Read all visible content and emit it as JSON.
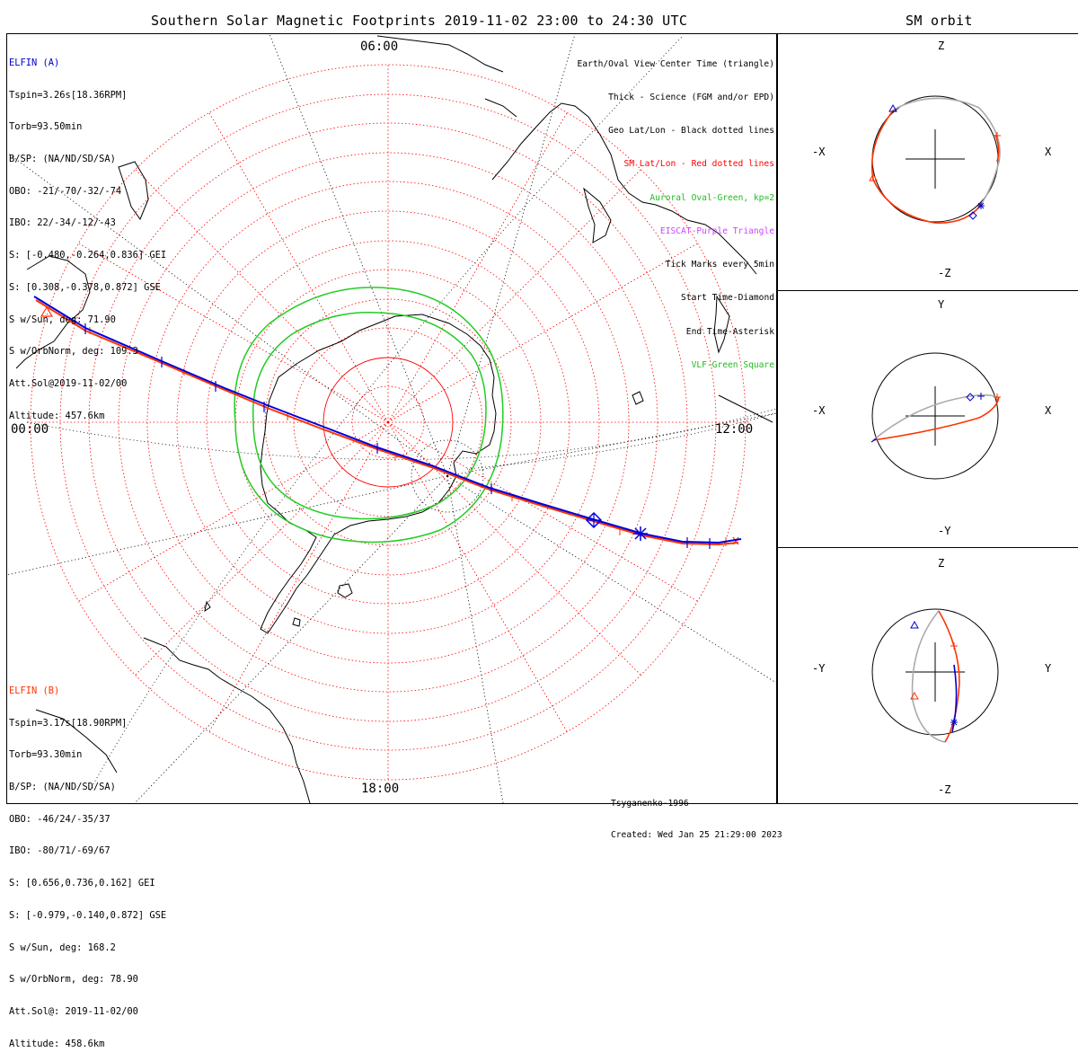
{
  "header": {
    "title": "Southern Solar Magnetic Footprints 2019-11-02 23:00 to 24:30 UTC",
    "orbit_panel_title": "SM orbit"
  },
  "map": {
    "mlt_labels": {
      "top": "06:00",
      "left": "00:00",
      "right": "12:00",
      "bottom": "18:00"
    }
  },
  "elfin_a": {
    "name": "ELFIN (A)",
    "color": "#0000cc",
    "lines": [
      "Tspin=3.26s[18.36RPM]",
      "Torb=93.50min",
      "B/SP: (NA/ND/SD/SA)",
      "OBO: -21/-70/-32/-74",
      "IBO: 22/-34/-12/-43",
      "S: [-0.480,-0.264,0.836] GEI",
      "S: [0.308,-0.378,0.872] GSE",
      "S w/Sun, deg: 71.90",
      "S w/OrbNorm, deg: 109.3",
      "Att.Sol@2019-11-02/00",
      "Altitude: 457.6km"
    ]
  },
  "elfin_b": {
    "name": "ELFIN (B)",
    "color": "#ff3300",
    "lines": [
      "Tspin=3.17s[18.90RPM]",
      "Torb=93.30min",
      "B/SP: (NA/ND/SD/SA)",
      "OBO: -46/24/-35/37",
      "IBO: -80/71/-69/67",
      "S: [0.656,0.736,0.162] GEI",
      "S: [-0.979,-0.140,0.872] GSE",
      "S w/Sun, deg: 168.2",
      "S w/OrbNorm, deg: 78.90",
      "Att.Sol@: 2019-11-02/00",
      "Altitude: 458.6km"
    ]
  },
  "legend": [
    {
      "text": "Earth/Oval View Center Time (triangle)",
      "color": "#000000"
    },
    {
      "text": "Thick - Science (FGM and/or EPD)",
      "color": "#000000"
    },
    {
      "text": "Geo Lat/Lon - Black dotted lines",
      "color": "#000000"
    },
    {
      "text": "SM Lat/Lon - Red dotted lines",
      "color": "#ff0000"
    },
    {
      "text": "Auroral Oval-Green, kp=2",
      "color": "#22bb22"
    },
    {
      "text": "EISCAT-Purple Triangle",
      "color": "#cc44ff"
    },
    {
      "text": "Tick Marks every 5min",
      "color": "#000000"
    },
    {
      "text": "Start Time-Diamond",
      "color": "#000000"
    },
    {
      "text": "End Time-Asterisk",
      "color": "#000000"
    },
    {
      "text": "VLF-Green Square",
      "color": "#22bb22"
    }
  ],
  "credit": {
    "line1": "Tsyganenko-1996",
    "line2": "Created: Wed Jan 25 21:29:00 2023"
  },
  "orbit_panels": [
    {
      "top": "Z",
      "bottom": "-Z",
      "left": "-X",
      "right": "X"
    },
    {
      "top": "Y",
      "bottom": "-Y",
      "left": "-X",
      "right": "X"
    },
    {
      "top": "Z",
      "bottom": "-Z",
      "left": "-Y",
      "right": "Y"
    }
  ]
}
